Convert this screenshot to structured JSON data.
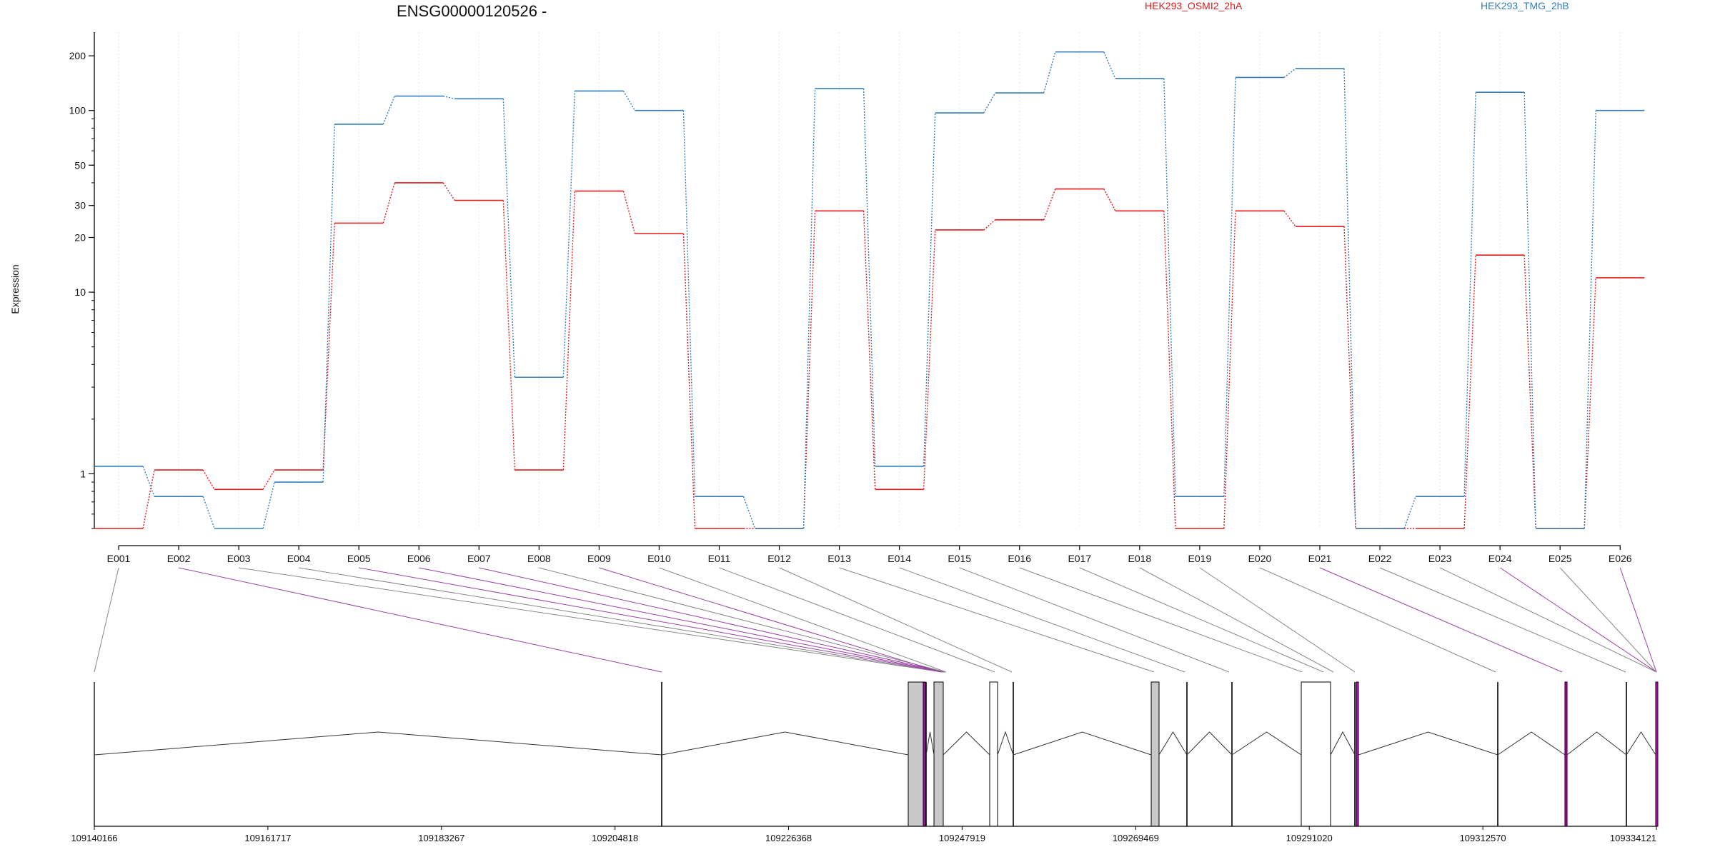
{
  "chart_data": {
    "type": "line",
    "title": "ENSG00000120526 -",
    "ylabel": "Expression",
    "xlabel": "",
    "yscale": "log",
    "ylim": [
      0.5,
      270
    ],
    "yticks": [
      {
        "value": 1,
        "label": "1"
      },
      {
        "value": 10,
        "label": "10"
      },
      {
        "value": 20,
        "label": "20"
      },
      {
        "value": 30,
        "label": "30"
      },
      {
        "value": 50,
        "label": "50"
      },
      {
        "value": 100,
        "label": "100"
      },
      {
        "value": 200,
        "label": "200"
      }
    ],
    "grid": "vertical",
    "legend_placement": "top",
    "categories": [
      "E001",
      "E002",
      "E003",
      "E004",
      "E005",
      "E006",
      "E007",
      "E008",
      "E009",
      "E010",
      "E011",
      "E012",
      "E013",
      "E014",
      "E015",
      "E016",
      "E017",
      "E018",
      "E019",
      "E020",
      "E021",
      "E022",
      "E023",
      "E024",
      "E025",
      "E026"
    ],
    "series": [
      {
        "name": "HEK293_OSMI2_2hA",
        "color": "#e41a1c",
        "values": [
          0.5,
          1.05,
          0.82,
          1.05,
          24,
          40,
          32,
          1.05,
          36,
          21,
          0.5,
          0.5,
          28,
          0.82,
          22,
          25,
          37,
          28,
          0.5,
          28,
          23,
          0.5,
          0.5,
          16,
          0.5,
          12
        ]
      },
      {
        "name": "HEK293_TMG_2hB",
        "color": "#377eb8",
        "values": [
          1.1,
          0.75,
          0.5,
          0.9,
          84,
          120,
          116,
          3.4,
          128,
          100,
          0.75,
          0.5,
          132,
          1.1,
          97,
          125,
          210,
          150,
          0.75,
          152,
          170,
          0.5,
          0.75,
          126,
          0.5,
          100
        ]
      }
    ]
  },
  "gene_model": {
    "coordinate_labels": [
      "109140166",
      "109161717",
      "109183267",
      "109204818",
      "109226368",
      "109247919",
      "109269469",
      "109291020",
      "109312570",
      "109334121"
    ],
    "highlight_color": "#cc00cc",
    "exon_fill_color": "#c8c8c8"
  }
}
